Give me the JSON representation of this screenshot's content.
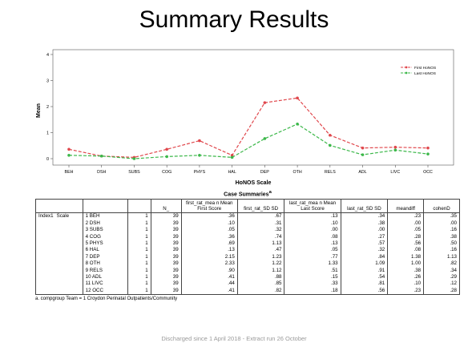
{
  "slide": {
    "title": "Summary Results",
    "credit": "Discharged since 1 April 2018 - Extract run 26 October"
  },
  "chart_data": {
    "type": "line",
    "title": "",
    "xlabel": "HoNOS Scale",
    "ylabel": "Mean",
    "ylim": [
      0,
      4
    ],
    "yticks": [
      "0",
      "1",
      "2",
      "3",
      "4"
    ],
    "categories": [
      "BEH",
      "DSH",
      "SUBS",
      "COG",
      "PHYS",
      "HAL",
      "DEP",
      "OTH",
      "RELS",
      "ADL",
      "LIVC",
      "OCC"
    ],
    "legend_position": "top-right",
    "series": [
      {
        "name": "First HoNOS",
        "color": "#e0474c",
        "values": [
          0.36,
          0.1,
          0.05,
          0.36,
          0.69,
          0.13,
          2.15,
          2.33,
          0.9,
          0.41,
          0.44,
          0.41
        ]
      },
      {
        "name": "Last HoNOS",
        "color": "#3cb84a",
        "values": [
          0.13,
          0.1,
          0.0,
          0.08,
          0.13,
          0.05,
          0.77,
          1.33,
          0.51,
          0.15,
          0.33,
          0.18
        ]
      }
    ]
  },
  "table": {
    "caption": "Case Summaries",
    "caption_sup": "a",
    "headers": [
      "",
      "",
      "",
      "N_",
      "first_rat_mea n Mean First Score",
      "first_rat_SD SD",
      "last_rat_mea n Mean Last Score",
      "last_rat_SD SD",
      "meandiff",
      "cohenD"
    ],
    "group_label": "Index1",
    "group_sublabel": "Scale",
    "rows": [
      {
        "scale": "1 BEH",
        "n1": "1",
        "n": "39",
        "first_mean": ".36",
        "first_sd": ".67",
        "last_mean": ".13",
        "last_sd": ".34",
        "meandiff": ".23",
        "cohend": ".35"
      },
      {
        "scale": "2 DSH",
        "n1": "1",
        "n": "39",
        "first_mean": ".10",
        "first_sd": ".31",
        "last_mean": ".10",
        "last_sd": ".38",
        "meandiff": ".00",
        "cohend": ".00"
      },
      {
        "scale": "3 SUBS",
        "n1": "1",
        "n": "39",
        "first_mean": ".05",
        "first_sd": ".32",
        "last_mean": ".00",
        "last_sd": ".00",
        "meandiff": ".05",
        "cohend": ".16"
      },
      {
        "scale": "4 COG",
        "n1": "1",
        "n": "39",
        "first_mean": ".36",
        "first_sd": ".74",
        "last_mean": ".08",
        "last_sd": ".27",
        "meandiff": ".28",
        "cohend": ".38"
      },
      {
        "scale": "5 PHYS",
        "n1": "1",
        "n": "39",
        "first_mean": ".69",
        "first_sd": "1.13",
        "last_mean": ".13",
        "last_sd": ".57",
        "meandiff": ".56",
        "cohend": ".50"
      },
      {
        "scale": "6 HAL",
        "n1": "1",
        "n": "39",
        "first_mean": ".13",
        "first_sd": ".47",
        "last_mean": ".05",
        "last_sd": ".32",
        "meandiff": ".08",
        "cohend": ".16"
      },
      {
        "scale": "7 DEP",
        "n1": "1",
        "n": "39",
        "first_mean": "2.15",
        "first_sd": "1.23",
        "last_mean": ".77",
        "last_sd": ".84",
        "meandiff": "1.38",
        "cohend": "1.13"
      },
      {
        "scale": "8 OTH",
        "n1": "1",
        "n": "39",
        "first_mean": "2.33",
        "first_sd": "1.22",
        "last_mean": "1.33",
        "last_sd": "1.09",
        "meandiff": "1.00",
        "cohend": ".82"
      },
      {
        "scale": "9 RELS",
        "n1": "1",
        "n": "39",
        "first_mean": ".90",
        "first_sd": "1.12",
        "last_mean": ".51",
        "last_sd": ".91",
        "meandiff": ".38",
        "cohend": ".34"
      },
      {
        "scale": "10 ADL",
        "n1": "1",
        "n": "39",
        "first_mean": ".41",
        "first_sd": ".88",
        "last_mean": ".15",
        "last_sd": ".54",
        "meandiff": ".26",
        "cohend": ".29"
      },
      {
        "scale": "11 LIVC",
        "n1": "1",
        "n": "39",
        "first_mean": ".44",
        "first_sd": ".85",
        "last_mean": ".33",
        "last_sd": ".81",
        "meandiff": ".10",
        "cohend": ".12"
      },
      {
        "scale": "12 OCC",
        "n1": "1",
        "n": "39",
        "first_mean": ".41",
        "first_sd": ".82",
        "last_mean": ".18",
        "last_sd": ".56",
        "meandiff": ".23",
        "cohend": ".28"
      }
    ],
    "footnote": "a. compgroup Team = 1 Croydon Perinatal Outpatients/Community"
  }
}
